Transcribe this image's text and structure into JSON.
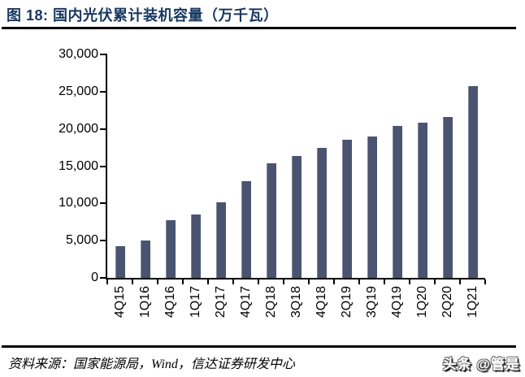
{
  "header": {
    "title": "图 18:  国内光伏累计装机容量（万千瓦）"
  },
  "chart_data": {
    "type": "bar",
    "title": "国内光伏累计装机容量（万千瓦）",
    "categories": [
      "4Q15",
      "1Q16",
      "4Q16",
      "1Q17",
      "2Q17",
      "4Q17",
      "2Q18",
      "3Q18",
      "4Q18",
      "2Q19",
      "3Q19",
      "4Q19",
      "1Q20",
      "2Q20",
      "1Q21"
    ],
    "values": [
      4300,
      5000,
      7700,
      8500,
      10200,
      13000,
      15400,
      16400,
      17500,
      18600,
      19000,
      20400,
      20800,
      21600,
      25800
    ],
    "xlabel": "",
    "ylabel": "",
    "ylim": [
      0,
      30000
    ],
    "ytick_interval": 5000,
    "ytick_labels": [
      "0",
      "5,000",
      "10,000",
      "15,000",
      "20,000",
      "25,000",
      "30,000"
    ],
    "grid": false,
    "legend_position": "none",
    "bar_color": "#4A5470",
    "axis_color": "#000000",
    "xlabel_rotation_deg": -90
  },
  "footer": {
    "source": "资料来源：国家能源局，Wind，信达证券研发中心",
    "watermark": "头条 @管是"
  },
  "colors": {
    "title_text": "#17375E",
    "rule": "#000000",
    "background": "#FFFFFF"
  }
}
